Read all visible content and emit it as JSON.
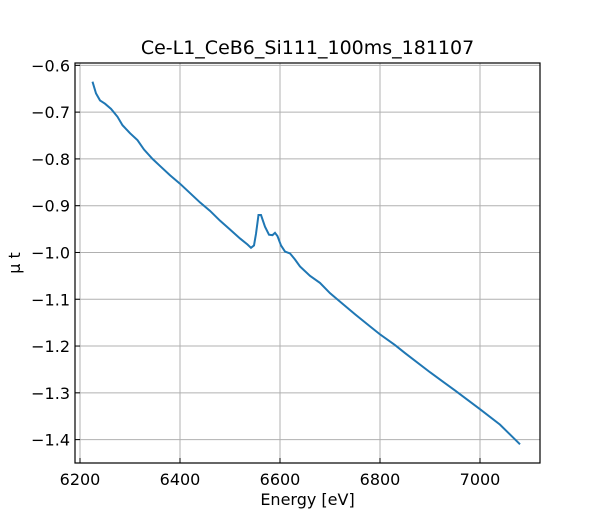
{
  "chart_data": {
    "type": "line",
    "title": "Ce-L1_CeB6_Si111_100ms_181107",
    "xlabel": "Energy [eV]",
    "ylabel": "μ t",
    "xlim": [
      6190,
      7120
    ],
    "ylim": [
      -1.45,
      -0.595
    ],
    "xticks": [
      6200,
      6400,
      6600,
      6800,
      7000
    ],
    "yticks": [
      -1.4,
      -1.3,
      -1.2,
      -1.1,
      -1.0,
      -0.9,
      -0.8,
      -0.7,
      -0.6
    ],
    "xtick_labels": [
      "6200",
      "6400",
      "6600",
      "6800",
      "7000"
    ],
    "ytick_labels": [
      "−1.4",
      "−1.3",
      "−1.2",
      "−1.1",
      "−1.0",
      "−0.9",
      "−0.8",
      "−0.7",
      "−0.6"
    ],
    "grid": true,
    "colors": {
      "series": "#1f77b4"
    },
    "series": [
      {
        "x": [
          6225,
          6232,
          6240,
          6250,
          6262,
          6275,
          6285,
          6300,
          6315,
          6328,
          6345,
          6360,
          6380,
          6400,
          6420,
          6440,
          6460,
          6480,
          6500,
          6520,
          6535,
          6542,
          6548,
          6552,
          6557,
          6562,
          6570,
          6578,
          6585,
          6590,
          6595,
          6602,
          6610,
          6620,
          6630,
          6640,
          6660,
          6680,
          6700,
          6720,
          6750,
          6780,
          6800,
          6830,
          6850,
          6900,
          6950,
          7000,
          7040,
          7080
        ],
        "y": [
          -0.635,
          -0.66,
          -0.675,
          -0.682,
          -0.693,
          -0.71,
          -0.728,
          -0.745,
          -0.76,
          -0.78,
          -0.8,
          -0.815,
          -0.835,
          -0.853,
          -0.873,
          -0.893,
          -0.911,
          -0.932,
          -0.951,
          -0.97,
          -0.983,
          -0.99,
          -0.985,
          -0.96,
          -0.92,
          -0.92,
          -0.945,
          -0.962,
          -0.963,
          -0.958,
          -0.965,
          -0.985,
          -0.998,
          -1.002,
          -1.015,
          -1.03,
          -1.05,
          -1.065,
          -1.087,
          -1.105,
          -1.132,
          -1.158,
          -1.175,
          -1.198,
          -1.215,
          -1.256,
          -1.295,
          -1.335,
          -1.368,
          -1.41
        ]
      }
    ]
  }
}
